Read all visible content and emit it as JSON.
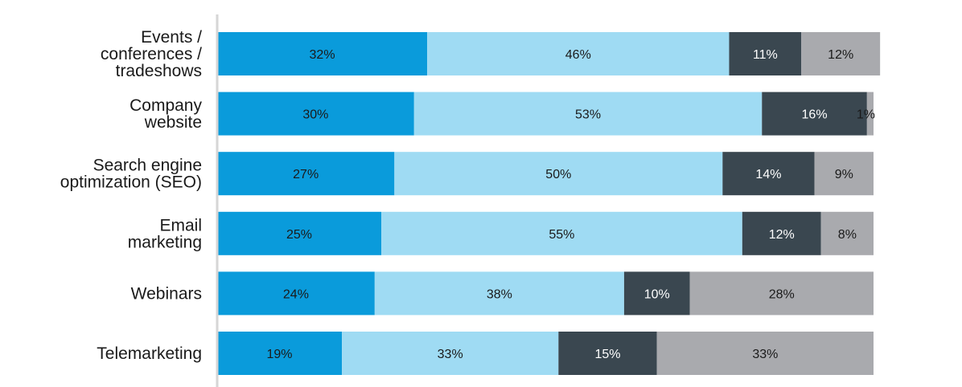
{
  "chart_data": {
    "type": "bar",
    "orientation": "horizontal",
    "stacked": true,
    "title": "",
    "xlabel": "",
    "ylabel": "",
    "xlim": [
      0,
      100
    ],
    "grid": false,
    "legend": "none",
    "categories": [
      [
        "Events /",
        "conferences /",
        "tradeshows"
      ],
      [
        "Company",
        "website"
      ],
      [
        "Search engine",
        "optimization (SEO)"
      ],
      [
        "Email",
        "marketing"
      ],
      [
        "Webinars"
      ],
      [
        "Telemarketing"
      ]
    ],
    "series": [
      {
        "color": "#0a9bdb",
        "label_color": "#1a1a1a",
        "values": [
          32,
          30,
          27,
          25,
          24,
          19
        ],
        "labels": [
          "32%",
          "30%",
          "27%",
          "25%",
          "24%",
          "19%"
        ]
      },
      {
        "color": "#9fdbf3",
        "label_color": "#1a1a1a",
        "values": [
          46,
          53,
          50,
          55,
          38,
          33
        ],
        "labels": [
          "46%",
          "53%",
          "50%",
          "55%",
          "38%",
          "33%"
        ]
      },
      {
        "color": "#3a4750",
        "label_color": "#ffffff",
        "values": [
          11,
          16,
          14,
          12,
          10,
          15
        ],
        "labels": [
          "11%",
          "16%",
          "14%",
          "12%",
          "10%",
          "15%"
        ]
      },
      {
        "color": "#a9aaae",
        "label_color": "#1a1a1a",
        "values": [
          12,
          1,
          9,
          8,
          28,
          33
        ],
        "labels": [
          "12%",
          "1%",
          "9%",
          "8%",
          "28%",
          "33%"
        ]
      }
    ]
  }
}
